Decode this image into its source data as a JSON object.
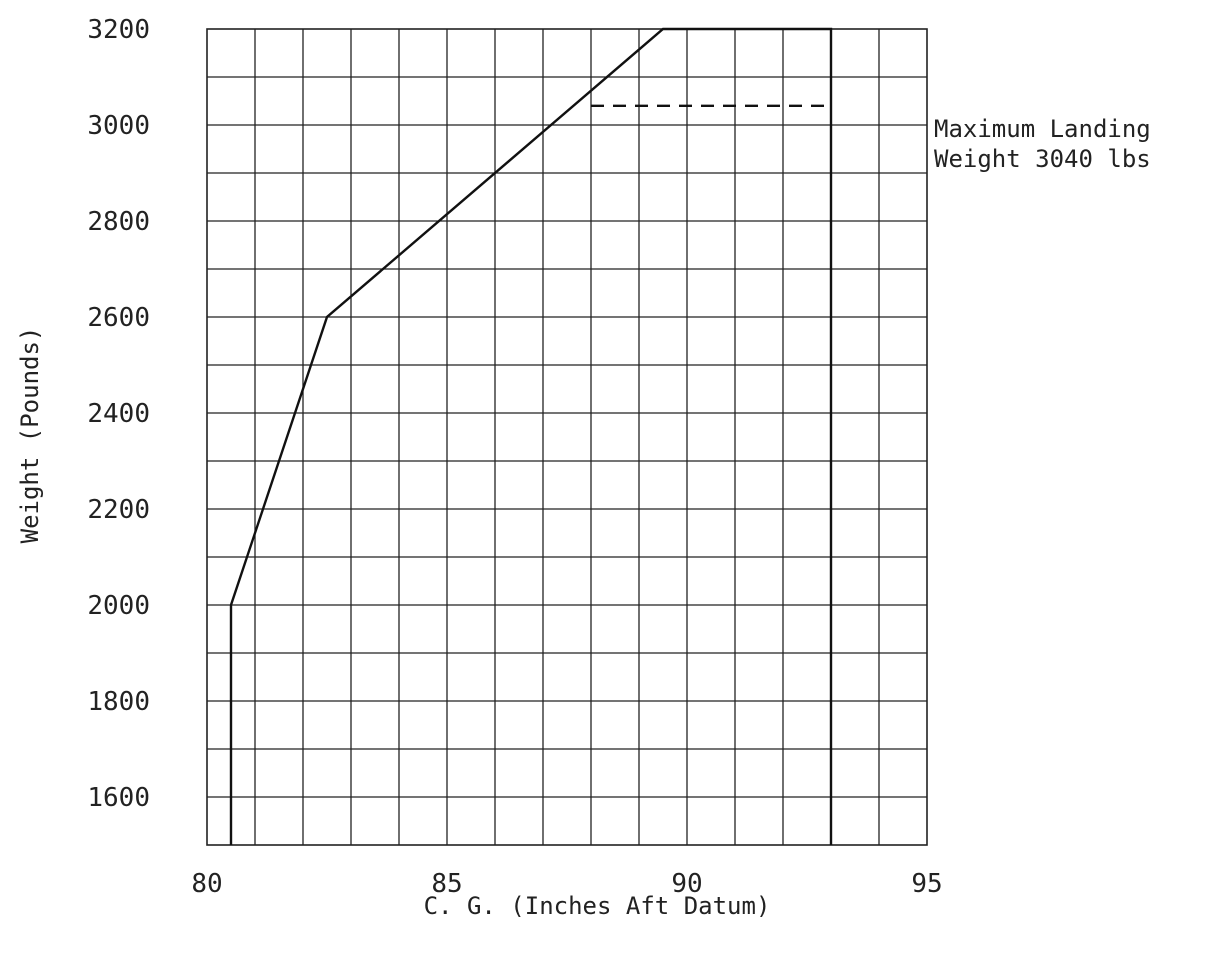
{
  "chart_data": {
    "type": "line",
    "title": "",
    "xlabel": "C. G. (Inches Aft Datum)",
    "ylabel": "Weight (Pounds)",
    "xlim": [
      80,
      95
    ],
    "ylim": [
      1500,
      3200
    ],
    "x_ticks": [
      80,
      85,
      90,
      95
    ],
    "y_ticks": [
      1600,
      1800,
      2000,
      2200,
      2400,
      2600,
      2800,
      3000,
      3200
    ],
    "grid": true,
    "series": [
      {
        "x": [
          80.5,
          80.5,
          82.5,
          89.5,
          93.0,
          93.0
        ],
        "y": [
          1500,
          2000,
          2600,
          3200,
          3200,
          1500
        ]
      }
    ],
    "reference_lines": [
      {
        "style": "dashed",
        "y": 3040,
        "x_range": [
          88.0,
          93.0
        ]
      }
    ],
    "annotations": [
      {
        "lines": [
          "Maximum Landing",
          "Weight 3040 lbs"
        ]
      }
    ]
  }
}
